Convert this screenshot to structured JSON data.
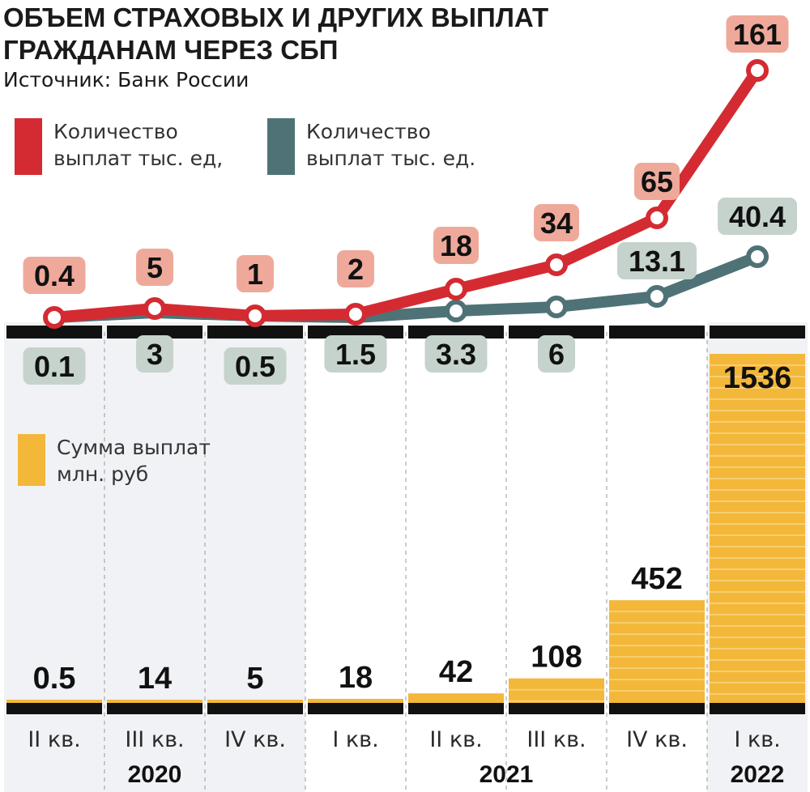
{
  "title_line1": "ОБЪЕМ СТРАХОВЫХ И ДРУГИХ ВЫПЛАТ",
  "title_line2": "ГРАЖДАНАМ ЧЕРЕЗ СБП",
  "source": "Источник: Банк России",
  "legend": {
    "red": "Количество выплат тыс. ед,",
    "teal": "Количество выплат тыс. ед.",
    "amount": "Сумма выплат млн. руб"
  },
  "colors": {
    "red": "#d42b32",
    "teal": "#4f7277",
    "amount": "#f3b73a",
    "red_label_bg": "#efa99a",
    "teal_label_bg": "#c5d3cc",
    "band": "#f1f2f5",
    "axis": "#111111"
  },
  "chart_data": {
    "type": "line",
    "categories": [
      "II кв.",
      "III кв.",
      "IV кв.",
      "I кв.",
      "II кв.",
      "III кв.",
      "IV кв.",
      "I кв."
    ],
    "years": [
      {
        "label": "2020",
        "span": [
          0,
          2
        ]
      },
      {
        "label": "2021",
        "span": [
          3,
          6
        ]
      },
      {
        "label": "2022",
        "span": [
          7,
          7
        ]
      }
    ],
    "series": [
      {
        "name": "Количество выплат тыс. ед,",
        "values": [
          0.4,
          5,
          1,
          2,
          18,
          34,
          65,
          161
        ],
        "labels": [
          "0.4",
          "5",
          "1",
          "2",
          "18",
          "34",
          "65",
          "161"
        ]
      },
      {
        "name": "Количество выплат тыс. ед.",
        "values": [
          0.1,
          3,
          0.5,
          1.5,
          3.3,
          6,
          13.1,
          40.4
        ],
        "labels": [
          "0.1",
          "3",
          "0.5",
          "1.5",
          "3.3",
          "6",
          "13.1",
          "40.4"
        ]
      }
    ],
    "bars": {
      "name": "Сумма выплат млн. руб",
      "type": "bar",
      "values": [
        0.5,
        14,
        5,
        18,
        42,
        108,
        452,
        1536
      ],
      "labels": [
        "0.5",
        "14",
        "5",
        "18",
        "42",
        "108",
        "452",
        "1536"
      ]
    }
  }
}
